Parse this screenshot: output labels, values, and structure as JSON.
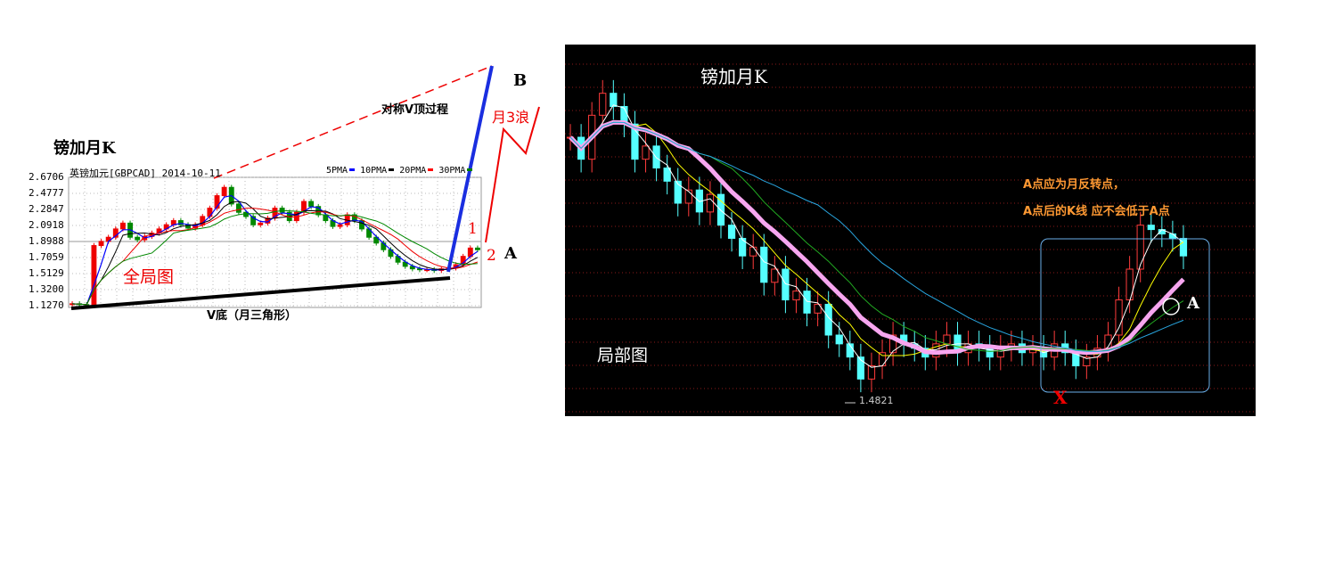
{
  "left_chart": {
    "title": "镑加月K",
    "header": "英镑加元[GBPCAD] 2014-10-11",
    "legend": [
      "5PMA",
      "10PMA",
      "20PMA",
      "30PMA"
    ],
    "legend_colors": [
      "#0000ff",
      "#000000",
      "#ff0000",
      "#008000"
    ],
    "y_ticks": [
      "2.6706",
      "2.4777",
      "2.2847",
      "2.0918",
      "1.8988",
      "1.7059",
      "1.5129",
      "1.3200",
      "1.1270"
    ],
    "ylim": [
      1.127,
      2.6706
    ],
    "annotations": {
      "overview": "全局图",
      "v_bottom": "V底（月三角形）",
      "symmetric": "对称V顶过程",
      "b": "B",
      "wave": "月3浪",
      "one": "1",
      "two": "2",
      "a": "A"
    }
  },
  "right_chart": {
    "title": "镑加月K",
    "subtitle": "局部图",
    "note1": "A点应为月反转点，",
    "note2": "A点后的K线 应不会低于A点",
    "low_label": "1.4821",
    "a": "A",
    "x": "X",
    "ylim": [
      1.45,
      2.2
    ]
  },
  "chart_data": [
    {
      "type": "candlestick",
      "title": "英镑加元[GBPCAD] 2014-10-11",
      "ylim": [
        1.127,
        2.6706
      ],
      "series": [
        {
          "name": "close",
          "values": [
            1.15,
            1.14,
            1.13,
            1.85,
            1.9,
            1.95,
            2.05,
            2.12,
            1.95,
            1.92,
            1.96,
            2.0,
            2.05,
            2.1,
            2.15,
            2.1,
            2.06,
            2.1,
            2.2,
            2.3,
            2.45,
            2.55,
            2.35,
            2.25,
            2.2,
            2.1,
            2.12,
            2.18,
            2.3,
            2.25,
            2.15,
            2.25,
            2.38,
            2.32,
            2.22,
            2.15,
            2.08,
            2.1,
            2.22,
            2.15,
            2.05,
            1.95,
            1.88,
            1.8,
            1.72,
            1.65,
            1.6,
            1.57,
            1.56,
            1.56,
            1.55,
            1.57,
            1.58,
            1.62,
            1.72,
            1.82,
            1.8
          ]
        }
      ]
    },
    {
      "type": "candlestick",
      "title": "镑加月K",
      "ylim": [
        1.45,
        2.2
      ],
      "series": [
        {
          "name": "close",
          "values": [
            2.05,
            2.0,
            2.1,
            2.15,
            2.12,
            2.08,
            2.0,
            2.03,
            1.98,
            1.95,
            1.9,
            1.93,
            1.88,
            1.92,
            1.85,
            1.82,
            1.78,
            1.8,
            1.72,
            1.75,
            1.68,
            1.7,
            1.65,
            1.67,
            1.6,
            1.58,
            1.55,
            1.5,
            1.53,
            1.56,
            1.6,
            1.58,
            1.57,
            1.55,
            1.58,
            1.6,
            1.56,
            1.58,
            1.57,
            1.55,
            1.57,
            1.58,
            1.56,
            1.57,
            1.55,
            1.58,
            1.56,
            1.53,
            1.55,
            1.57,
            1.6,
            1.68,
            1.75,
            1.85,
            1.84,
            1.83,
            1.82,
            1.78
          ]
        }
      ]
    }
  ]
}
